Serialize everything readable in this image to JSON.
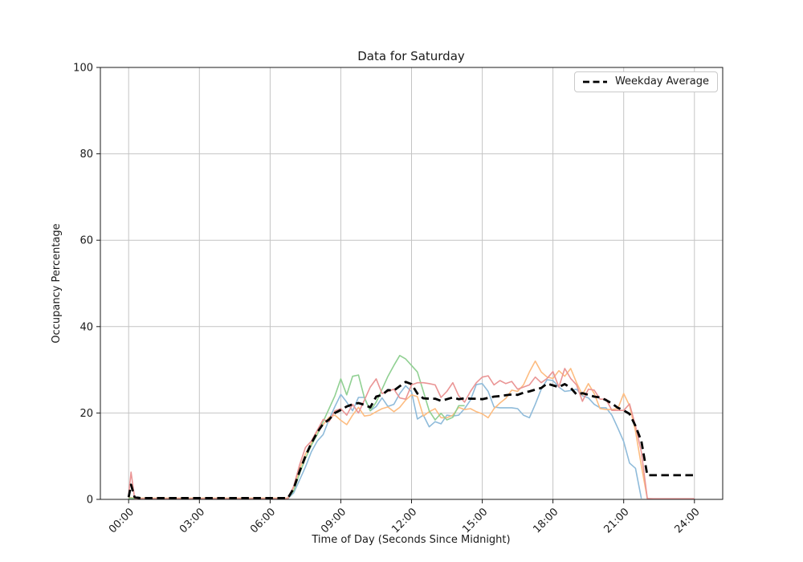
{
  "chart_data": {
    "type": "line",
    "title": "Data for Saturday",
    "xlabel": "Time of Day (Seconds Since Midnight)",
    "ylabel": "Occupancy Percentage",
    "xlim_hours": [
      -1.2,
      25.2
    ],
    "ylim": [
      0,
      100
    ],
    "grid": true,
    "grid_color": "#c4c4c4",
    "axis_color": "#1a1a1a",
    "background_color": "#ffffff",
    "xticks_hours": [
      0,
      3,
      6,
      9,
      12,
      15,
      18,
      21,
      24
    ],
    "xtick_labels": [
      "00:00",
      "03:00",
      "06:00",
      "09:00",
      "12:00",
      "15:00",
      "18:00",
      "21:00",
      "24:00"
    ],
    "yticks": [
      0,
      20,
      40,
      60,
      80,
      100
    ],
    "ytick_labels": [
      "0",
      "20",
      "40",
      "60",
      "80",
      "100"
    ],
    "legend": {
      "label": "Weekday Average",
      "position": "upper right"
    },
    "hours": [
      0,
      0.1,
      0.25,
      0.5,
      0.75,
      1,
      1.25,
      1.5,
      1.75,
      2,
      2.25,
      2.5,
      2.75,
      3,
      3.25,
      3.5,
      3.75,
      4,
      4.25,
      4.5,
      4.75,
      5,
      5.25,
      5.5,
      5.75,
      6,
      6.25,
      6.5,
      6.75,
      7,
      7.25,
      7.5,
      7.75,
      8,
      8.25,
      8.5,
      8.75,
      9,
      9.25,
      9.5,
      9.75,
      10,
      10.25,
      10.5,
      10.75,
      11,
      11.25,
      11.5,
      11.75,
      12,
      12.25,
      12.5,
      12.75,
      13,
      13.25,
      13.5,
      13.75,
      14,
      14.25,
      14.5,
      14.75,
      15,
      15.25,
      15.5,
      15.75,
      16,
      16.25,
      16.5,
      16.75,
      17,
      17.25,
      17.5,
      17.75,
      18,
      18.25,
      18.5,
      18.75,
      19,
      19.25,
      19.5,
      19.75,
      20,
      20.25,
      20.5,
      20.75,
      21,
      21.25,
      21.5,
      21.75,
      22,
      22.25,
      22.5,
      22.75,
      23,
      23.25,
      23.5,
      23.75,
      24
    ],
    "series": [
      {
        "name": "saturday-line-1",
        "color": "#8fbbda",
        "style": "solid",
        "in_legend": false,
        "values": [
          0.3,
          0.3,
          0.2,
          0.15,
          0.15,
          0.15,
          0.15,
          0.15,
          0.15,
          0.15,
          0.15,
          0.15,
          0.15,
          0.15,
          0.15,
          0.15,
          0.15,
          0.15,
          0.15,
          0.15,
          0.15,
          0.15,
          0.15,
          0.15,
          0.15,
          0.15,
          0.15,
          0.15,
          0.15,
          1.5,
          4.5,
          7.5,
          11,
          13.5,
          15,
          18.5,
          21.5,
          24.3,
          22.5,
          20.5,
          23.6,
          23.6,
          20.5,
          21.5,
          23.5,
          21.5,
          22,
          24.5,
          26.3,
          24.9,
          18.6,
          19.5,
          16.8,
          18,
          17.5,
          19.5,
          19.3,
          19.5,
          21,
          23,
          26.6,
          26.8,
          25,
          21.4,
          21.2,
          21.2,
          21.2,
          21,
          19.5,
          18.9,
          22,
          25.5,
          27.7,
          27.5,
          26,
          25,
          25.2,
          25.5,
          24,
          23.5,
          22,
          21.2,
          21.2,
          19.5,
          16.5,
          13.4,
          8.4,
          7.2,
          0.2,
          null,
          null,
          null,
          null,
          null,
          null,
          null,
          null,
          null
        ]
      },
      {
        "name": "saturday-line-2",
        "color": "#fdbc80",
        "style": "solid",
        "in_legend": false,
        "values": [
          0.3,
          0.4,
          0.3,
          0.3,
          0.3,
          0.3,
          0.3,
          0.3,
          0.3,
          0.3,
          0.3,
          0.3,
          0.3,
          0.3,
          0.3,
          0.3,
          0.3,
          0.3,
          0.3,
          0.3,
          0.3,
          0.3,
          0.3,
          0.3,
          0.3,
          0.3,
          0.3,
          0.3,
          0.3,
          2.8,
          7,
          10.5,
          13,
          15.8,
          17.3,
          19,
          19.5,
          18.3,
          17.3,
          19.5,
          21.3,
          19.3,
          19.5,
          20.3,
          21,
          21.4,
          20.3,
          21.3,
          23,
          24.2,
          23.8,
          19.3,
          20.3,
          21,
          18.9,
          18.9,
          19.5,
          21.3,
          20.8,
          21,
          20.3,
          19.8,
          18.9,
          21,
          22.3,
          23.4,
          25.3,
          25,
          26.5,
          29.5,
          32,
          29.5,
          28.3,
          28,
          29.8,
          28.5,
          30.3,
          27,
          24.2,
          26.8,
          24.5,
          21,
          20.8,
          20.8,
          21,
          24.5,
          21.7,
          15.8,
          7.8,
          0.2,
          null,
          null,
          null,
          null,
          null,
          null,
          null,
          null
        ]
      },
      {
        "name": "saturday-line-3",
        "color": "#90d092",
        "style": "solid",
        "in_legend": false,
        "values": [
          0.2,
          0.3,
          0.2,
          0.15,
          0.15,
          0.15,
          0.15,
          0.15,
          0.15,
          0.15,
          0.15,
          0.15,
          0.15,
          0.15,
          0.15,
          0.15,
          0.15,
          0.15,
          0.15,
          0.15,
          0.15,
          0.15,
          0.15,
          0.15,
          0.15,
          0.15,
          0.15,
          0.15,
          0.15,
          2,
          6,
          9.5,
          12.5,
          15,
          18,
          21,
          24,
          27.9,
          24.2,
          28.5,
          28.8,
          23.5,
          20.5,
          22.5,
          25.5,
          28.5,
          31,
          33.3,
          32.5,
          31,
          29.5,
          25,
          20.5,
          18.4,
          19.9,
          18.4,
          19,
          21.7,
          21.7,
          null,
          null,
          null,
          null,
          null,
          null,
          null,
          null,
          null,
          null,
          null,
          null,
          null,
          null,
          null,
          null,
          null,
          null,
          null,
          null,
          null,
          null,
          null,
          null,
          null,
          null,
          null,
          null,
          null,
          null,
          null,
          null,
          null,
          null,
          null,
          null,
          null,
          null,
          null
        ]
      },
      {
        "name": "saturday-line-4",
        "color": "#ea9595",
        "style": "solid",
        "in_legend": false,
        "values": [
          1,
          6.3,
          0.3,
          0.15,
          0.15,
          0.15,
          0.15,
          0.15,
          0.15,
          0.15,
          0.15,
          0.15,
          0.15,
          0.15,
          0.15,
          0.15,
          0.15,
          0.15,
          0.15,
          0.15,
          0.15,
          0.15,
          0.15,
          0.15,
          0.15,
          0.15,
          0.15,
          0.15,
          0.15,
          3,
          8,
          12,
          13.5,
          16,
          18.5,
          18,
          20.5,
          21,
          19.5,
          22,
          20,
          23,
          26,
          27.9,
          24.5,
          25,
          25.5,
          23.5,
          23.2,
          26.5,
          27,
          27,
          26.8,
          26.5,
          23.6,
          25,
          27,
          24,
          22.5,
          25,
          27,
          28.3,
          28.6,
          26.5,
          27.5,
          26.8,
          27.3,
          25.5,
          26,
          26.5,
          28.3,
          27,
          28,
          29.6,
          26,
          30.3,
          28,
          26.5,
          22.7,
          25.5,
          25.3,
          23.2,
          23.2,
          20.6,
          20.6,
          20.6,
          22.1,
          17,
          11,
          0.2,
          0.15,
          0.15,
          0.15,
          0.15,
          0.15,
          0.15,
          0.15,
          0.15
        ]
      },
      {
        "name": "weekday-average",
        "color": "#000000",
        "style": "dashed",
        "in_legend": true,
        "values": [
          0.5,
          3.4,
          0.5,
          0.3,
          0.3,
          0.3,
          0.3,
          0.3,
          0.3,
          0.3,
          0.3,
          0.3,
          0.3,
          0.3,
          0.3,
          0.3,
          0.3,
          0.3,
          0.3,
          0.3,
          0.3,
          0.3,
          0.3,
          0.3,
          0.3,
          0.3,
          0.3,
          0.3,
          0.3,
          2.5,
          6.5,
          10,
          13,
          15.5,
          17.5,
          18.5,
          20,
          20.7,
          21.5,
          22,
          22.3,
          21.9,
          21.3,
          23.8,
          24.2,
          25.3,
          25.2,
          26.2,
          27.2,
          26.7,
          24.5,
          23.4,
          23.3,
          23.3,
          22.8,
          23.2,
          23.6,
          23.2,
          23.4,
          23.3,
          23.3,
          23.2,
          23.5,
          23.8,
          23.9,
          24.1,
          24.3,
          24.2,
          24.7,
          25,
          25.4,
          25.8,
          26.8,
          26.4,
          26,
          26.7,
          25.8,
          24.3,
          24.6,
          24.2,
          23.8,
          23.6,
          23,
          22.2,
          21.2,
          20.6,
          19.8,
          17,
          13.5,
          5.6,
          5.6,
          5.6,
          5.6,
          5.6,
          5.6,
          5.6,
          5.6,
          5.6
        ]
      }
    ]
  }
}
